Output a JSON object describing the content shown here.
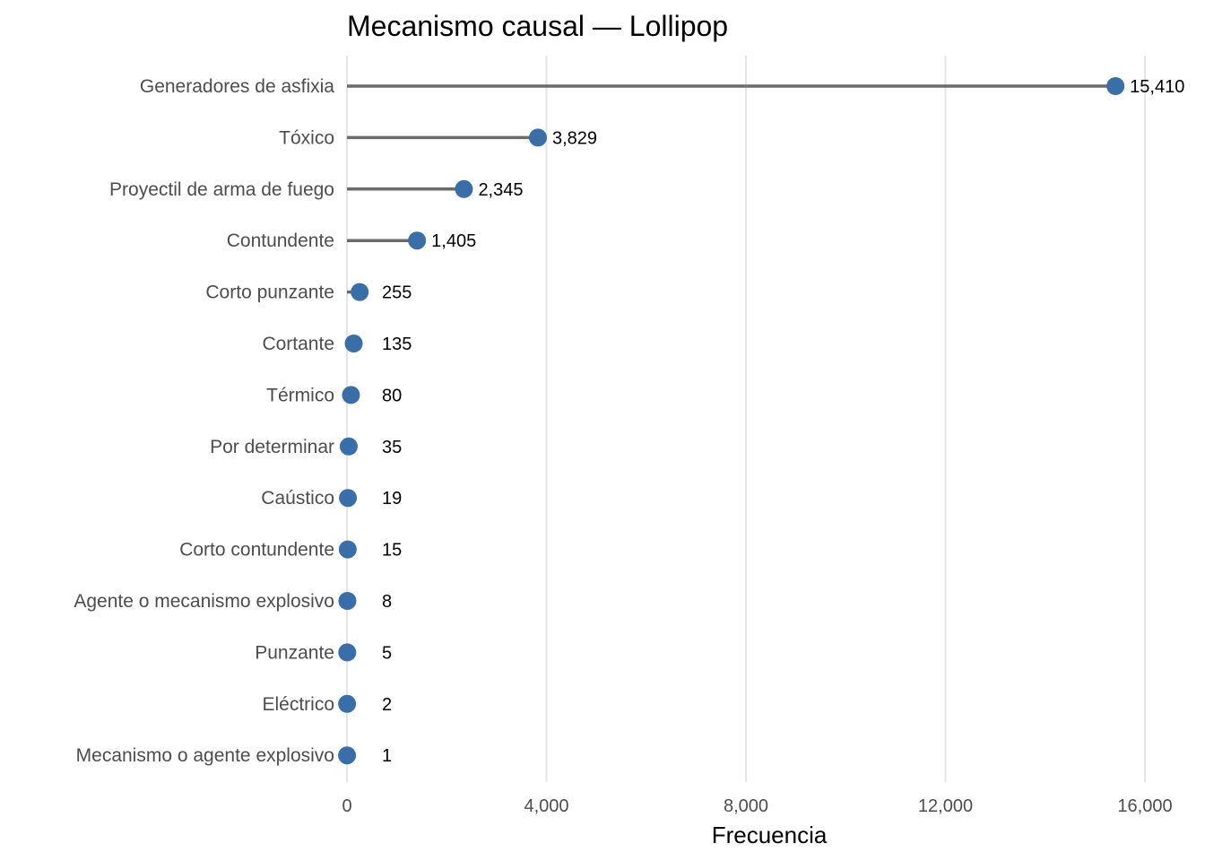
{
  "chart_data": {
    "type": "lollipop",
    "title": "Mecanismo causal — Lollipop",
    "xlabel": "Frecuencia",
    "ylabel": "",
    "xlim": [
      0,
      16000
    ],
    "x_ticks": [
      0,
      4000,
      8000,
      12000,
      16000
    ],
    "x_tick_labels": [
      "0",
      "4,000",
      "8,000",
      "12,000",
      "16,000"
    ],
    "grid": "vertical",
    "colors": {
      "point": "#3a6ea8",
      "stem": "#6b6b6b",
      "grid": "#e5e5e5"
    },
    "categories": [
      "Generadores de asfixia",
      "Tóxico",
      "Proyectil de arma de fuego",
      "Contundente",
      "Corto punzante",
      "Cortante",
      "Térmico",
      "Por determinar",
      "Caústico",
      "Corto contundente",
      "Agente o mecanismo explosivo",
      "Punzante",
      "Eléctrico",
      "Mecanismo o agente explosivo"
    ],
    "values": [
      15410,
      3829,
      2345,
      1405,
      255,
      135,
      80,
      35,
      19,
      15,
      8,
      5,
      2,
      1
    ],
    "value_labels": [
      "15,410",
      "3,829",
      "2,345",
      "1,405",
      "255",
      "135",
      "80",
      "35",
      "19",
      "15",
      "8",
      "5",
      "2",
      "1"
    ]
  }
}
